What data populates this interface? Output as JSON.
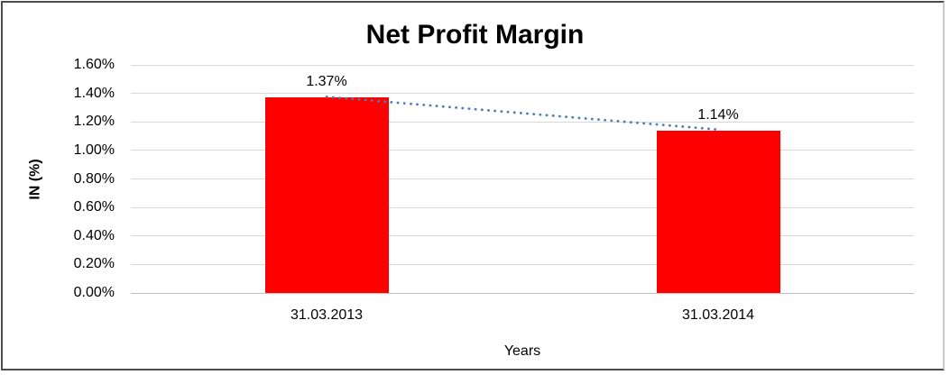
{
  "chart_data": {
    "type": "bar",
    "title": "Net Profit Margin",
    "ylabel": "IN (%)",
    "xlabel": "Years",
    "categories": [
      "31.03.2013",
      "31.03.2014"
    ],
    "values": [
      1.37,
      1.14
    ],
    "value_labels": [
      "1.37%",
      "1.14%"
    ],
    "ylim": [
      0,
      1.6
    ],
    "ytick_step": 0.2,
    "ytick_labels": [
      "0.00%",
      "0.20%",
      "0.40%",
      "0.60%",
      "0.80%",
      "1.00%",
      "1.20%",
      "1.40%",
      "1.60%"
    ],
    "grid": true,
    "legend": "none",
    "bar_color": "#ff0000",
    "trendline": {
      "type": "linear",
      "style": "dotted",
      "color": "#4a7ebb",
      "points": [
        1.37,
        1.14
      ]
    }
  },
  "colors": {
    "gridline": "#d9d9d9",
    "axis_line": "#bfbfbf",
    "text": "#000000",
    "frame_dark": "#4d4d4d",
    "frame_light": "#c9c9c9",
    "background": "#ffffff"
  }
}
